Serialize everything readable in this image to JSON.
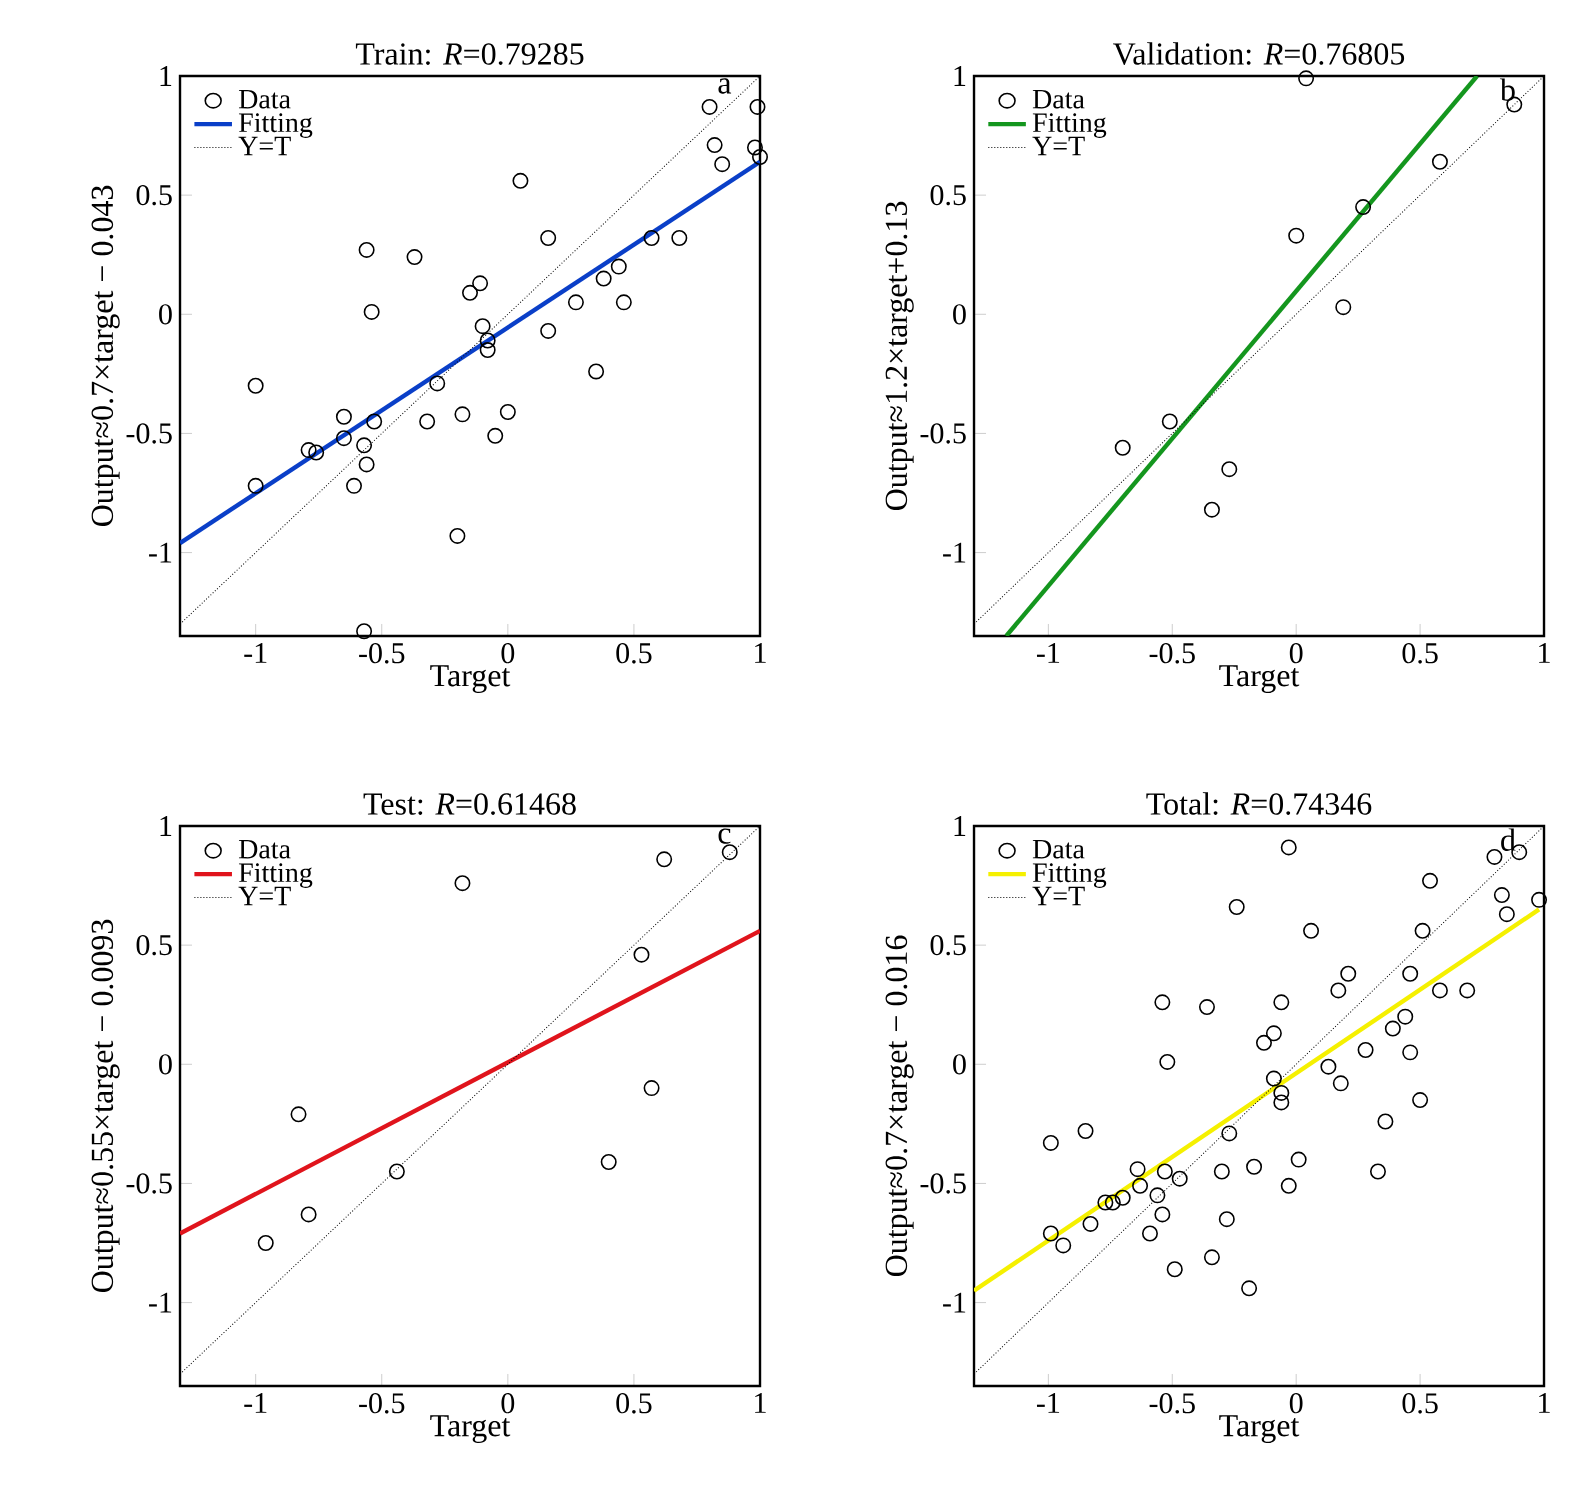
{
  "chart_data": [
    {
      "type": "scatter",
      "title": "Train: *R*=0.79285",
      "xlabel": "Target",
      "ylabel": "Output≈0.7×target − 0.043",
      "xlim": [
        -1.3,
        1
      ],
      "ylim": [
        -1.35,
        1
      ],
      "xticks": [
        -1,
        -0.5,
        0,
        0.5,
        1
      ],
      "yticks": [
        -1,
        -0.5,
        0,
        0.5,
        1
      ],
      "legend": "top left",
      "annotations": [
        "a"
      ],
      "series": [
        {
          "name": "Data",
          "marker": "circle",
          "color": "#000000",
          "x": [
            0.8,
            0.99,
            0.82,
            0.98,
            0.85,
            1.0,
            0.05,
            0.16,
            0.57,
            0.68,
            -0.56,
            -0.37,
            -0.11,
            -0.15,
            0.44,
            0.38,
            0.27,
            0.46,
            -0.54,
            -0.1,
            -0.08,
            -0.08,
            0.16,
            0.35,
            -0.28,
            -1.0,
            -0.65,
            -0.53,
            -0.32,
            -0.18,
            0,
            -0.05,
            -0.65,
            -0.57,
            -0.79,
            -0.76,
            -0.56,
            -0.61,
            -1.0,
            -0.2,
            -0.57
          ],
          "values": [
            0.87,
            0.87,
            0.71,
            0.7,
            0.63,
            0.66,
            0.56,
            0.32,
            0.32,
            0.32,
            0.27,
            0.24,
            0.13,
            0.09,
            0.2,
            0.15,
            0.05,
            0.05,
            0.01,
            -0.05,
            -0.11,
            -0.15,
            -0.07,
            -0.24,
            -0.29,
            -0.3,
            -0.43,
            -0.45,
            -0.45,
            -0.42,
            -0.41,
            -0.51,
            -0.52,
            -0.55,
            -0.57,
            -0.58,
            -0.63,
            -0.72,
            -0.72,
            -0.93,
            -1.33
          ]
        },
        {
          "name": "Fitting",
          "type": "line",
          "line_style": "solid",
          "color": "#0a3fc8",
          "x": [
            -1.3,
            1
          ],
          "values": [
            -0.96,
            0.64
          ]
        },
        {
          "name": "Y=T",
          "type": "line",
          "line_style": "dotted",
          "color": "#000000",
          "x": [
            -1.3,
            1
          ],
          "values": [
            -1.3,
            1
          ]
        }
      ]
    },
    {
      "type": "scatter",
      "title": "Validation: *R*=0.76805",
      "xlabel": "Target",
      "ylabel": "Output≈1.2×target+0.13",
      "xlim": [
        -1.3,
        1
      ],
      "ylim": [
        -1.35,
        1
      ],
      "xticks": [
        -1,
        -0.5,
        0,
        0.5,
        1
      ],
      "yticks": [
        -1,
        -0.5,
        0,
        0.5,
        1
      ],
      "legend": "top left",
      "annotations": [
        "b"
      ],
      "series": [
        {
          "name": "Data",
          "marker": "circle",
          "color": "#000000",
          "x": [
            0.04,
            0.88,
            0.58,
            0.27,
            0,
            0.19,
            -0.51,
            -0.7,
            -0.27,
            -0.34
          ],
          "values": [
            0.99,
            0.88,
            0.64,
            0.45,
            0.33,
            0.03,
            -0.45,
            -0.56,
            -0.65,
            -0.82
          ]
        },
        {
          "name": "Fitting",
          "type": "line",
          "line_style": "solid",
          "color": "#14961e",
          "x": [
            -1.17,
            0.73
          ],
          "values": [
            -1.35,
            1.0
          ]
        },
        {
          "name": "Y=T",
          "type": "line",
          "line_style": "dotted",
          "color": "#000000",
          "x": [
            -1.3,
            1
          ],
          "values": [
            -1.3,
            1
          ]
        }
      ]
    },
    {
      "type": "scatter",
      "title": "Test: *R*=0.61468",
      "xlabel": "Target",
      "ylabel": "Output≈0.55×target − 0.0093",
      "xlim": [
        -1.3,
        1
      ],
      "ylim": [
        -1.35,
        1
      ],
      "xticks": [
        -1,
        -0.5,
        0,
        0.5,
        1
      ],
      "yticks": [
        -1,
        -0.5,
        0,
        0.5,
        1
      ],
      "legend": "top left",
      "annotations": [
        "c"
      ],
      "series": [
        {
          "name": "Data",
          "marker": "circle",
          "color": "#000000",
          "x": [
            -0.18,
            0.62,
            0.88,
            0.53,
            0.57,
            0.4,
            -0.83,
            -0.44,
            -0.79,
            -0.96
          ],
          "values": [
            0.76,
            0.86,
            0.89,
            0.46,
            -0.1,
            -0.41,
            -0.21,
            -0.45,
            -0.63,
            -0.75
          ]
        },
        {
          "name": "Fitting",
          "type": "line",
          "line_style": "solid",
          "color": "#e0141c",
          "x": [
            -1.3,
            1
          ],
          "values": [
            -0.71,
            0.56
          ]
        },
        {
          "name": "Y=T",
          "type": "line",
          "line_style": "dotted",
          "color": "#000000",
          "x": [
            -1.3,
            1
          ],
          "values": [
            -1.3,
            1
          ]
        }
      ]
    },
    {
      "type": "scatter",
      "title": "Total: *R*=0.74346",
      "xlabel": "Target",
      "ylabel": "Output≈0.7×target − 0.016",
      "xlim": [
        -1.3,
        1
      ],
      "ylim": [
        -1.35,
        1
      ],
      "xticks": [
        -1,
        -0.5,
        0,
        0.5,
        1
      ],
      "yticks": [
        -1,
        -0.5,
        0,
        0.5,
        1
      ],
      "legend": "top left",
      "annotations": [
        "d"
      ],
      "series": [
        {
          "name": "Data",
          "marker": "circle",
          "color": "#000000",
          "x": [
            -0.03,
            0.8,
            0.9,
            0.98,
            0.83,
            0.85,
            0.54,
            -0.24,
            0.51,
            0.06,
            0.21,
            0.17,
            0.46,
            0.58,
            0.69,
            -0.54,
            -0.36,
            -0.06,
            -0.09,
            -0.13,
            0.44,
            0.39,
            0.28,
            0.46,
            -0.52,
            0.13,
            0.18,
            -0.09,
            -0.06,
            -0.06,
            0.5,
            0.36,
            -0.99,
            -0.85,
            -0.27,
            -0.64,
            -0.17,
            0.01,
            -0.3,
            0.33,
            -0.53,
            -0.47,
            -0.63,
            -0.7,
            -0.77,
            -0.74,
            -0.56,
            -0.03,
            -0.54,
            -0.28,
            -0.83,
            -0.59,
            -0.99,
            -0.94,
            -0.34,
            -0.49,
            -0.19
          ],
          "values": [
            0.91,
            0.87,
            0.89,
            0.69,
            0.71,
            0.63,
            0.77,
            0.66,
            0.56,
            0.56,
            0.38,
            0.31,
            0.38,
            0.31,
            0.31,
            0.26,
            0.24,
            0.26,
            0.13,
            0.09,
            0.2,
            0.15,
            0.06,
            0.05,
            0.01,
            -0.01,
            -0.08,
            -0.06,
            -0.12,
            -0.16,
            -0.15,
            -0.24,
            -0.33,
            -0.28,
            -0.29,
            -0.44,
            -0.43,
            -0.4,
            -0.45,
            -0.45,
            -0.45,
            -0.48,
            -0.51,
            -0.56,
            -0.58,
            -0.58,
            -0.55,
            -0.51,
            -0.63,
            -0.65,
            -0.67,
            -0.71,
            -0.71,
            -0.76,
            -0.81,
            -0.86,
            -0.94
          ]
        },
        {
          "name": "Fitting",
          "type": "line",
          "line_style": "solid",
          "color": "#f5f000",
          "x": [
            -1.3,
            0.98
          ],
          "values": [
            -0.95,
            0.65
          ]
        },
        {
          "name": "Y=T",
          "type": "line",
          "line_style": "dotted",
          "color": "#000000",
          "x": [
            -1.3,
            1
          ],
          "values": [
            -1.3,
            1
          ]
        }
      ]
    }
  ]
}
